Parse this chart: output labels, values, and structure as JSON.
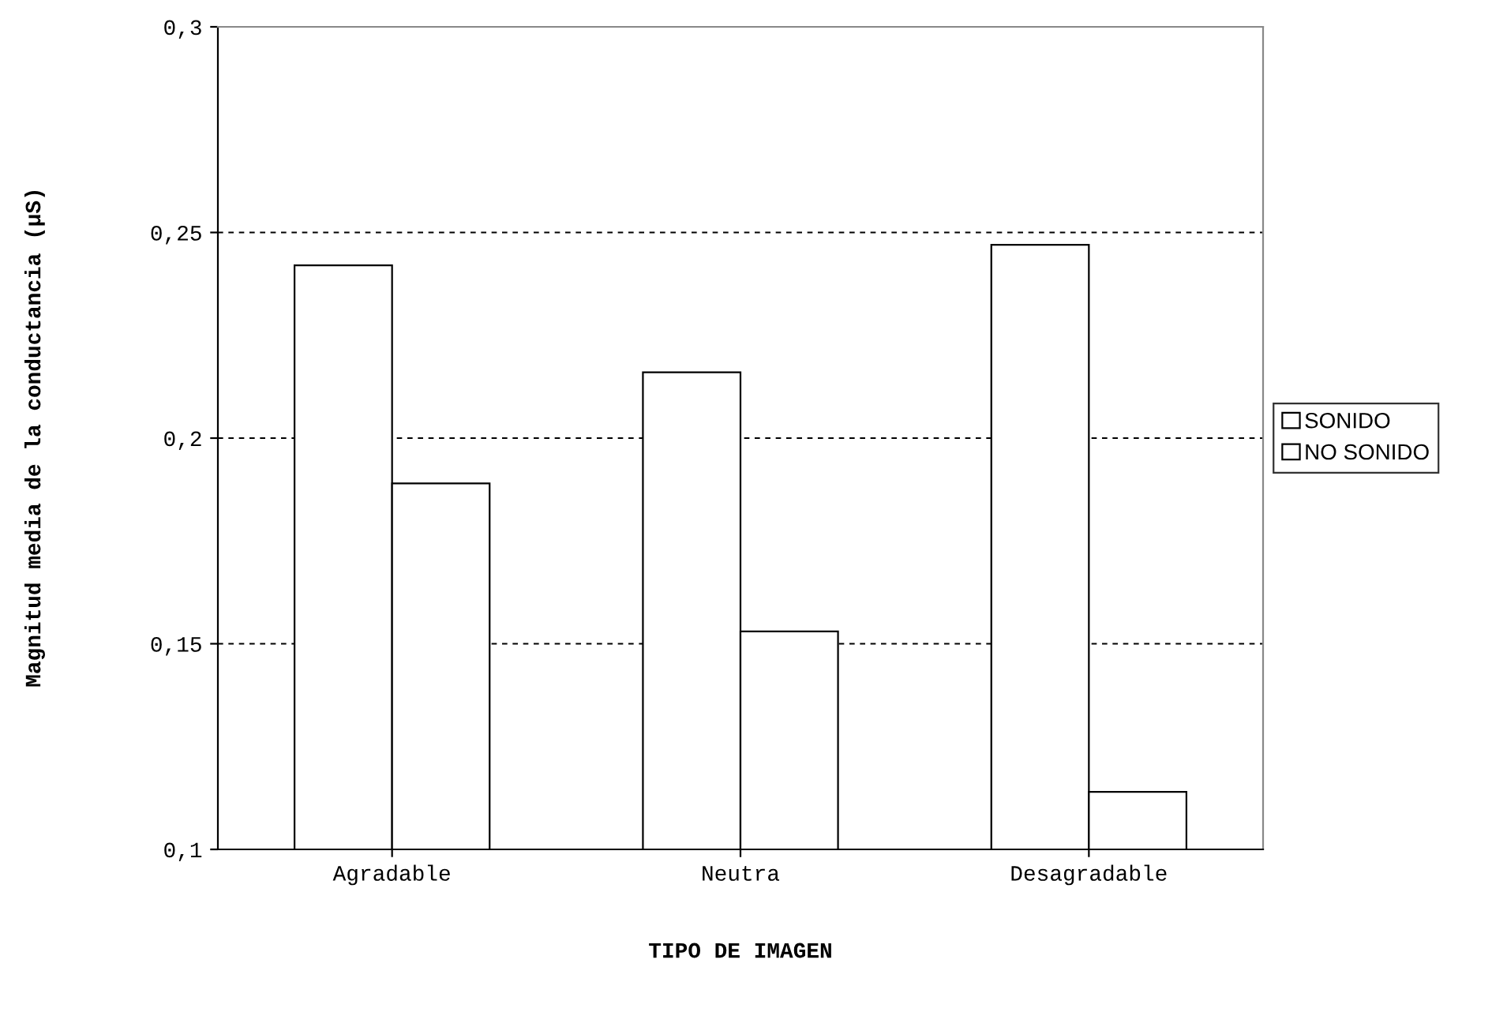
{
  "chart_data": {
    "type": "bar",
    "xlabel": "TIPO DE IMAGEN",
    "ylabel": "Magnitud media de la conductancia (µS)",
    "categories": [
      "Agradable",
      "Neutra",
      "Desagradable"
    ],
    "series": [
      {
        "name": "SONIDO",
        "color": "#ffffff",
        "values": [
          0.242,
          0.216,
          0.247
        ]
      },
      {
        "name": "NO SONIDO",
        "color": "#ffffff",
        "values": [
          0.189,
          0.153,
          0.114
        ]
      }
    ],
    "ylim": [
      0.1,
      0.3
    ],
    "yticks": [
      {
        "value": 0.1,
        "label": "0,1"
      },
      {
        "value": 0.15,
        "label": "0,15"
      },
      {
        "value": 0.2,
        "label": "0,2"
      },
      {
        "value": 0.25,
        "label": "0,25"
      },
      {
        "value": 0.3,
        "label": "0,3"
      }
    ],
    "grid": "y",
    "legend": "right"
  }
}
